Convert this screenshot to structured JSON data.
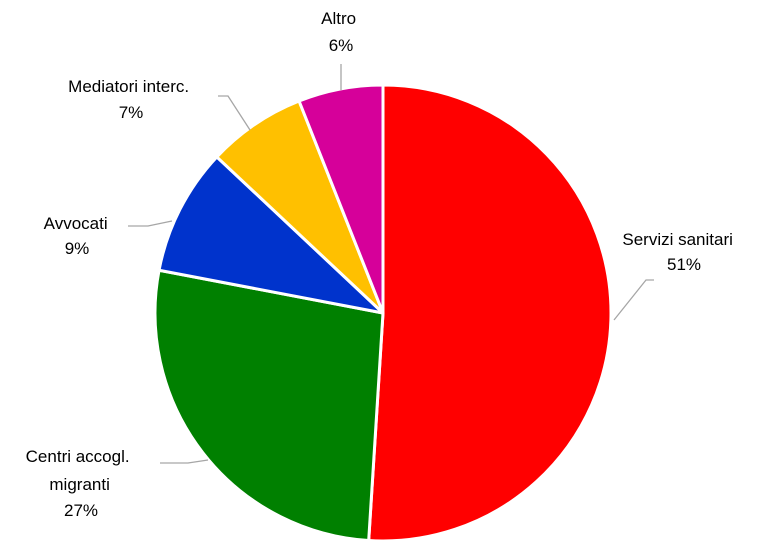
{
  "chart_data": {
    "type": "pie",
    "slices": [
      {
        "label": "Servizi sanitari",
        "value": 51,
        "display": "51%",
        "color": "#ff0000"
      },
      {
        "label": "Centri accogl. migranti",
        "value": 27,
        "display": "27%",
        "color": "#008000"
      },
      {
        "label": "Avvocati",
        "value": 9,
        "display": "9%",
        "color": "#0033cc"
      },
      {
        "label": "Mediatori interc.",
        "value": 7,
        "display": "7%",
        "color": "#ffc000"
      },
      {
        "label": "Altro",
        "value": 6,
        "display": "6%",
        "color": "#d6009a"
      }
    ],
    "start": "12 o'clock",
    "direction": "clockwise",
    "legend": "none",
    "data_labels": "outside with leader lines"
  }
}
